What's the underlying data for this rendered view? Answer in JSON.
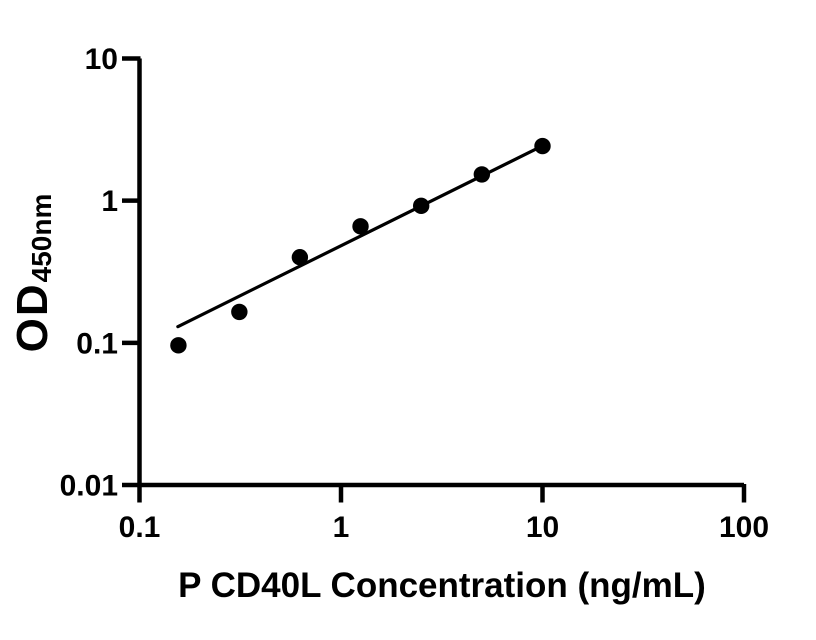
{
  "colors": {
    "foreground": "#000000",
    "background": "#ffffff"
  },
  "chart_data": {
    "type": "scatter",
    "title": "",
    "xlabel": "P CD40L Concentration (ng/mL)",
    "ylabel_main": "OD",
    "ylabel_sub": "450nm",
    "xscale": "log",
    "yscale": "log",
    "xlim": [
      0.1,
      100
    ],
    "ylim": [
      0.01,
      10
    ],
    "grid": false,
    "legend": false,
    "x_ticks": [
      {
        "value": 0.1,
        "label": "0.1"
      },
      {
        "value": 1,
        "label": "1"
      },
      {
        "value": 10,
        "label": "10"
      },
      {
        "value": 100,
        "label": "100"
      }
    ],
    "y_ticks": [
      {
        "value": 0.01,
        "label": "0.01"
      },
      {
        "value": 0.1,
        "label": "0.1"
      },
      {
        "value": 1,
        "label": "1"
      },
      {
        "value": 10,
        "label": "10"
      }
    ],
    "series": [
      {
        "name": "standard-curve-points",
        "marker": "filled-circle",
        "color": "#000000",
        "points": [
          {
            "x": 0.156,
            "y": 0.096
          },
          {
            "x": 0.313,
            "y": 0.165
          },
          {
            "x": 0.625,
            "y": 0.4
          },
          {
            "x": 1.25,
            "y": 0.66
          },
          {
            "x": 2.5,
            "y": 0.92
          },
          {
            "x": 5,
            "y": 1.53
          },
          {
            "x": 10,
            "y": 2.42
          }
        ]
      }
    ],
    "trendline": {
      "name": "log-log-fit-line",
      "color": "#000000",
      "x1": 0.155,
      "y1": 0.13,
      "x2": 10,
      "y2": 2.43
    }
  }
}
